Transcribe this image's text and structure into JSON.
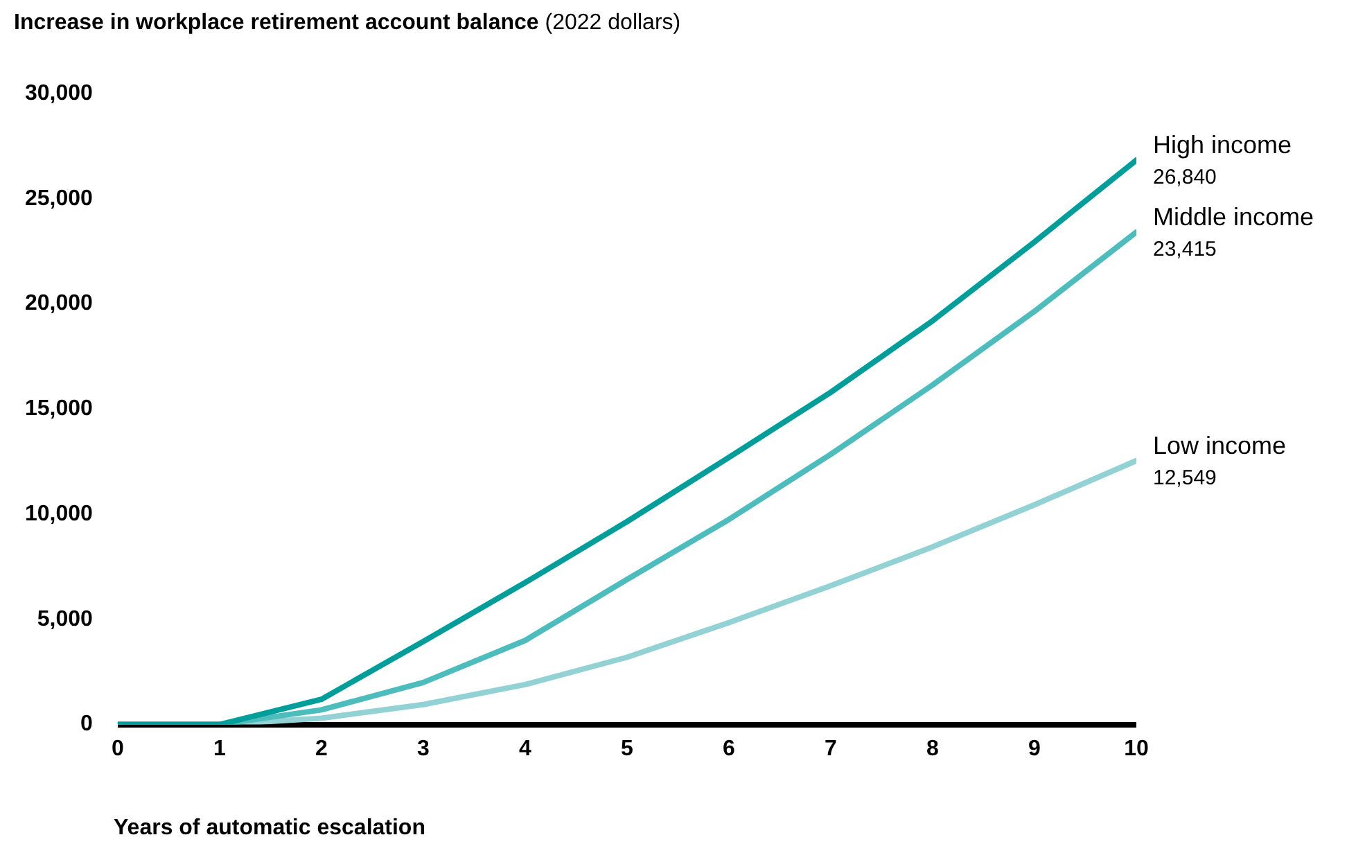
{
  "chart_data": {
    "type": "line",
    "title": "Increase in workplace retirement account balance",
    "subtitle": "(2022 dollars)",
    "xlabel": "Years of automatic escalation",
    "x": [
      0,
      1,
      2,
      3,
      4,
      5,
      6,
      7,
      8,
      9,
      10
    ],
    "xlim": [
      0,
      10
    ],
    "xticks": [
      0,
      1,
      2,
      3,
      4,
      5,
      6,
      7,
      8,
      9,
      10
    ],
    "ylim": [
      0,
      30000
    ],
    "yticks": [
      0,
      {
        "value": 5000,
        "label": "5,000"
      },
      {
        "value": 10000,
        "label": "10,000"
      },
      {
        "value": 15000,
        "label": "15,000"
      },
      {
        "value": 20000,
        "label": "20,000"
      },
      {
        "value": 25000,
        "label": "25,000"
      },
      {
        "value": 30000,
        "label": "30,000"
      }
    ],
    "grid": false,
    "legend": false,
    "marker": "none",
    "line_style": "solid",
    "series": [
      {
        "name": "High income",
        "color": "#009e9a",
        "values": [
          0,
          0,
          1200,
          3950,
          6750,
          9650,
          12700,
          15800,
          19200,
          22950,
          26840
        ],
        "value_labels": [
          null,
          null,
          null,
          null,
          null,
          null,
          null,
          null,
          null,
          null,
          "26,840"
        ]
      },
      {
        "name": "Middle income",
        "color": "#4dbcbc",
        "values": [
          0,
          0,
          700,
          2000,
          4000,
          6900,
          9750,
          12850,
          16150,
          19650,
          23415
        ],
        "value_labels": [
          null,
          null,
          null,
          null,
          null,
          null,
          null,
          null,
          null,
          null,
          "23,415"
        ]
      },
      {
        "name": "Low income",
        "color": "#93d2d4",
        "values": [
          0,
          0,
          300,
          950,
          1900,
          3200,
          4850,
          6600,
          8450,
          10450,
          12549
        ],
        "value_labels": [
          null,
          null,
          null,
          null,
          null,
          null,
          null,
          null,
          null,
          null,
          "12,549"
        ]
      }
    ]
  }
}
